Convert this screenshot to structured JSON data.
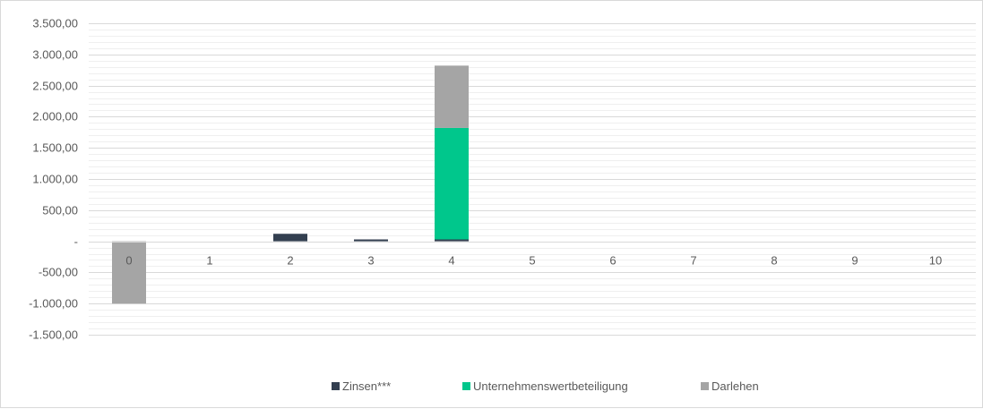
{
  "chart_data": {
    "type": "bar",
    "stacked": true,
    "categories": [
      "0",
      "1",
      "2",
      "3",
      "4",
      "5",
      "6",
      "7",
      "8",
      "9",
      "10"
    ],
    "series": [
      {
        "name": "Zinsen***",
        "color": "#333f50",
        "values": [
          0,
          0,
          120,
          30,
          30,
          0,
          0,
          0,
          0,
          0,
          0
        ]
      },
      {
        "name": "Unternehmenswertbeteiligung",
        "color": "#00c78c",
        "values": [
          0,
          0,
          0,
          0,
          1790,
          0,
          0,
          0,
          0,
          0,
          0
        ]
      },
      {
        "name": "Darlehen",
        "color": "#a5a5a5",
        "values": [
          -1000,
          0,
          0,
          0,
          1000,
          0,
          0,
          0,
          0,
          0,
          0
        ]
      }
    ],
    "y_ticks": [
      {
        "value": 3500,
        "label": "3.500,00"
      },
      {
        "value": 3000,
        "label": "3.000,00"
      },
      {
        "value": 2500,
        "label": "2.500,00"
      },
      {
        "value": 2000,
        "label": "2.000,00"
      },
      {
        "value": 1500,
        "label": "1.500,00"
      },
      {
        "value": 1000,
        "label": "1.000,00"
      },
      {
        "value": 500,
        "label": "500,00"
      },
      {
        "value": 0,
        "label": "-"
      },
      {
        "value": -500,
        "label": "-500,00"
      },
      {
        "value": -1000,
        "label": "-1.000,00"
      },
      {
        "value": -1500,
        "label": "-1.500,00"
      }
    ],
    "ylim": [
      -1500,
      3500
    ],
    "title": "",
    "xlabel": "",
    "ylabel": "",
    "grid": true,
    "legend_position": "bottom"
  }
}
